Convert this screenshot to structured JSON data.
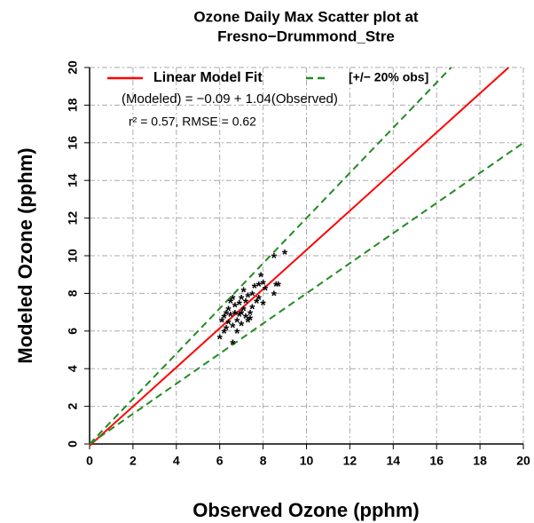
{
  "chart_data": {
    "type": "scatter",
    "title": [
      "Ozone Daily Max Scatter plot at",
      "Fresno−Drummond_Stre"
    ],
    "x_label": "Observed Ozone (pphm)",
    "y_label": "Modeled Ozone (pphm)",
    "marker": "*",
    "marker_color": "#000000",
    "x": [
      6.0,
      6.1,
      6.2,
      6.3,
      6.3,
      6.4,
      6.4,
      6.5,
      6.5,
      6.6,
      6.6,
      6.6,
      6.7,
      6.7,
      6.8,
      6.8,
      6.9,
      6.9,
      7.0,
      7.0,
      7.1,
      7.1,
      7.2,
      7.2,
      7.3,
      7.3,
      7.4,
      7.4,
      7.5,
      7.5,
      7.6,
      7.7,
      7.8,
      7.8,
      7.9,
      8.0,
      8.0,
      8.1,
      8.5,
      8.6,
      8.7,
      8.5,
      9.0,
      7.0,
      6.2
    ],
    "values": [
      5.7,
      6.6,
      6.8,
      6.2,
      7.0,
      6.5,
      7.2,
      6.9,
      7.6,
      5.4,
      6.3,
      7.8,
      7.0,
      7.4,
      6.6,
      6.0,
      7.5,
      6.9,
      7.8,
      6.4,
      7.2,
      8.2,
      6.8,
      7.6,
      7.9,
      6.6,
      7.0,
      6.7,
      7.3,
      8.0,
      8.4,
      7.6,
      8.5,
      7.8,
      9.0,
      8.6,
      7.5,
      8.3,
      8.0,
      8.5,
      8.5,
      10.0,
      10.2,
      7.0,
      6.0
    ],
    "lines": [
      {
        "name": "Linear Model Fit",
        "color": "#ff0000",
        "dash": false,
        "x": [
          0,
          19.32
        ],
        "values": [
          -0.09,
          20
        ]
      },
      {
        "name": "[+/− 20% obs]",
        "color": "#228b22",
        "dash": true,
        "x": [
          0,
          16.67,
          null,
          0,
          20
        ],
        "values": [
          0,
          20,
          null,
          0,
          16
        ]
      }
    ],
    "annotations": [
      "(Modeled) = −0.09 + 1.04(Observed)",
      "r² = 0.57,  RMSE = 0.62"
    ],
    "xlim": [
      0,
      20
    ],
    "ylim": [
      0,
      20
    ],
    "xticks": [
      0,
      2,
      4,
      6,
      8,
      10,
      12,
      14,
      16,
      18,
      20
    ],
    "yticks": [
      0,
      2,
      4,
      6,
      8,
      10,
      12,
      14,
      16,
      18,
      20
    ],
    "grid": true,
    "legend": "top-left"
  }
}
